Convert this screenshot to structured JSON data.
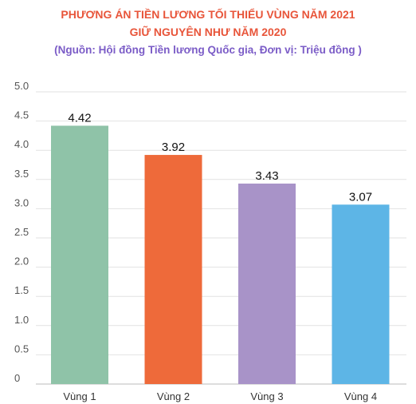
{
  "title_line1": "PHƯƠNG ÁN TIỀN LƯƠNG TỐI THIỂU VÙNG NĂM 2021",
  "title_line2": "GIỮ NGUYÊN NHƯ NĂM 2020",
  "source_note": "(Nguồn: Hội đồng Tiền lương Quốc gia, Đơn vị: Triệu đồng )",
  "chart_data": {
    "type": "bar",
    "categories": [
      "Vùng 1",
      "Vùng 2",
      "Vùng 3",
      "Vùng 4"
    ],
    "values": [
      4.42,
      3.92,
      3.43,
      3.07
    ],
    "data_labels": [
      "4.42",
      "3.92",
      "3.43",
      "3.07"
    ],
    "colors": [
      "#8fc3a8",
      "#ee6a3a",
      "#a893c8",
      "#5db5e6"
    ],
    "y_ticks": [
      "0",
      "0.5",
      "1.0",
      "1.5",
      "2.0",
      "2.5",
      "3.0",
      "3.5",
      "4.0",
      "4.5",
      "5.0"
    ],
    "ylim": [
      0,
      5
    ],
    "grid": true,
    "legend": "none"
  }
}
